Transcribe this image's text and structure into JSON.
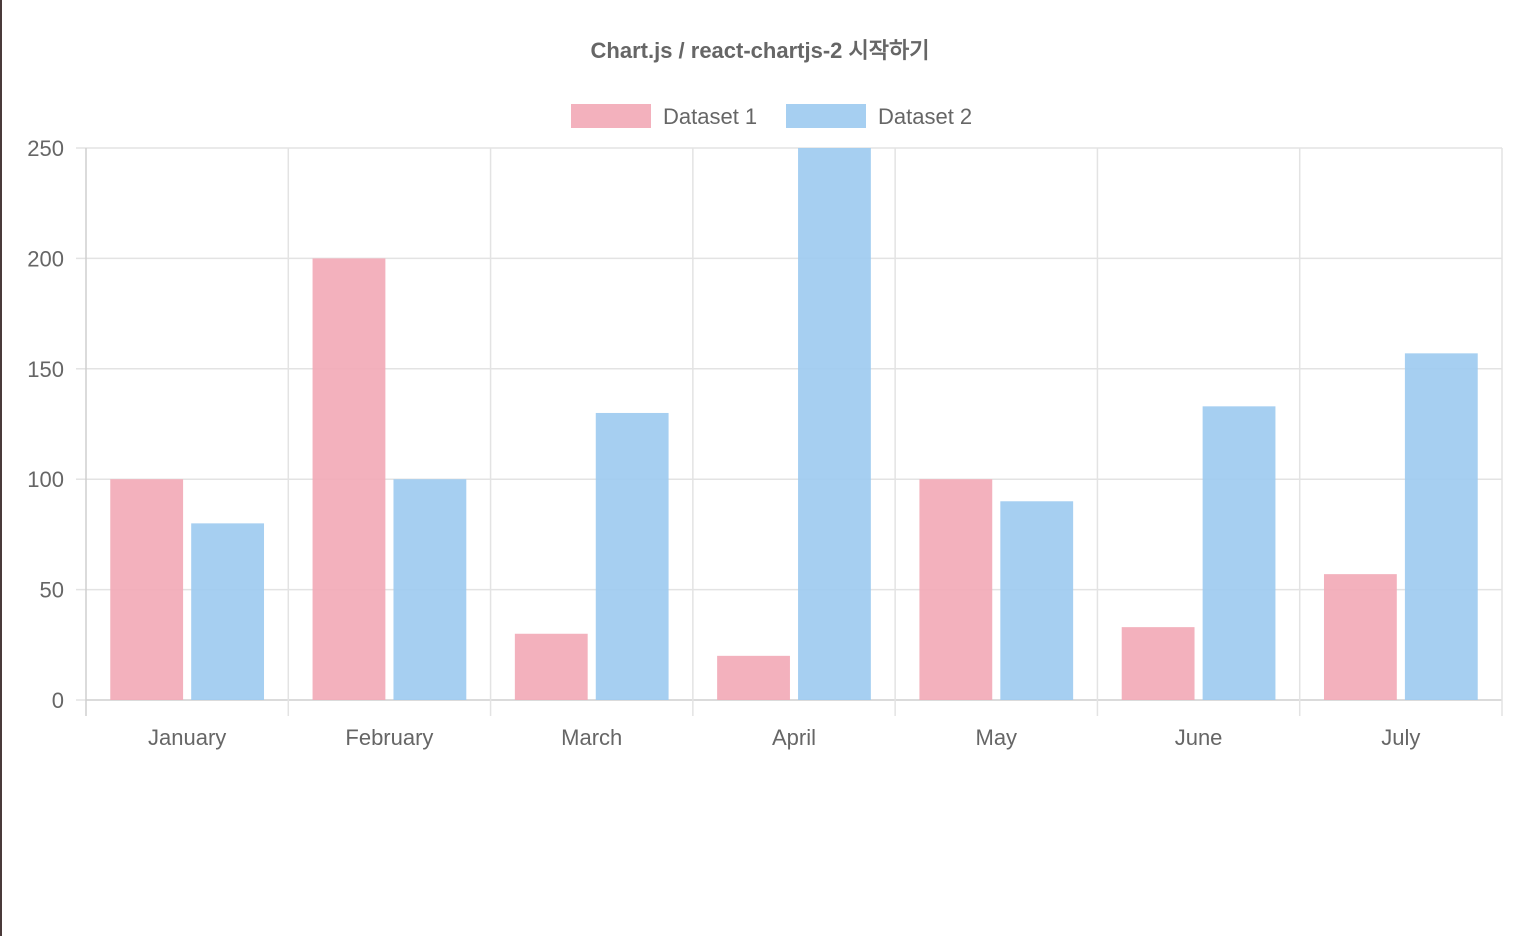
{
  "chart_data": {
    "type": "bar",
    "title": "Chart.js / react-chartjs-2 시작하기",
    "categories": [
      "January",
      "February",
      "March",
      "April",
      "May",
      "June",
      "July"
    ],
    "series": [
      {
        "name": "Dataset 1",
        "values": [
          100,
          200,
          30,
          20,
          100,
          33,
          57
        ],
        "color": "#f2a9b6"
      },
      {
        "name": "Dataset 2",
        "values": [
          80,
          100,
          130,
          250,
          90,
          133,
          157
        ],
        "color": "#9ccaf0"
      }
    ],
    "y_ticks": [
      "0",
      "50",
      "100",
      "150",
      "200",
      "250"
    ],
    "ylim": [
      0,
      250
    ],
    "grid": true,
    "legend_position": "top"
  }
}
